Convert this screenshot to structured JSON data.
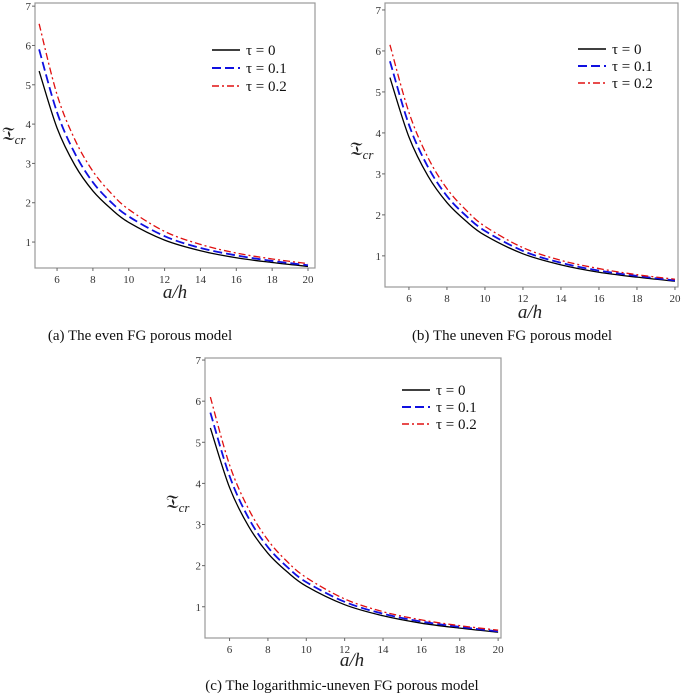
{
  "chart_data": [
    {
      "type": "line",
      "caption": "(a)  The even FG porous model",
      "xlabel": "a/h",
      "ylabel": {
        "symbol": "𝔗",
        "sub": "cr"
      },
      "xlim": [
        4.77,
        20.39
      ],
      "ylim": [
        0.34,
        7.08
      ],
      "xticks": [
        6,
        8,
        10,
        12,
        14,
        16,
        18,
        20
      ],
      "yticks": [
        1,
        2,
        3,
        4,
        5,
        6,
        7
      ],
      "grid": false,
      "legend_position": "top-right",
      "x": [
        5,
        6,
        7,
        8,
        9,
        10,
        12,
        14,
        16,
        18,
        20
      ],
      "series": [
        {
          "name": "τ = 0",
          "color": "#000000",
          "style": "solid",
          "values": [
            5.35,
            3.9,
            2.95,
            2.3,
            1.85,
            1.5,
            1.05,
            0.78,
            0.6,
            0.48,
            0.38
          ]
        },
        {
          "name": "τ = 0.1",
          "color": "#1010e0",
          "style": "dashed",
          "values": [
            5.9,
            4.3,
            3.25,
            2.52,
            2.02,
            1.65,
            1.15,
            0.85,
            0.66,
            0.52,
            0.41
          ]
        },
        {
          "name": "τ = 0.2",
          "color": "#e01010",
          "style": "dashdot",
          "values": [
            6.55,
            4.75,
            3.6,
            2.8,
            2.25,
            1.83,
            1.27,
            0.94,
            0.72,
            0.57,
            0.45
          ]
        }
      ]
    },
    {
      "type": "line",
      "caption": "(b)  The uneven FG porous model",
      "xlabel": "a/h",
      "ylabel": {
        "symbol": "𝔗",
        "sub": "cr"
      },
      "xlim": [
        4.74,
        20.16
      ],
      "ylim": [
        0.24,
        7.17
      ],
      "xticks": [
        6,
        8,
        10,
        12,
        14,
        16,
        18,
        20
      ],
      "yticks": [
        1,
        2,
        3,
        4,
        5,
        6,
        7
      ],
      "grid": false,
      "legend_position": "top-right",
      "x": [
        5,
        6,
        7,
        8,
        9,
        10,
        12,
        14,
        16,
        18,
        20
      ],
      "series": [
        {
          "name": "τ = 0",
          "color": "#000000",
          "style": "solid",
          "values": [
            5.35,
            3.9,
            2.95,
            2.3,
            1.85,
            1.5,
            1.05,
            0.78,
            0.6,
            0.48,
            0.38
          ]
        },
        {
          "name": "τ = 0.1",
          "color": "#1010e0",
          "style": "dashed",
          "values": [
            5.75,
            4.2,
            3.17,
            2.46,
            1.98,
            1.61,
            1.12,
            0.83,
            0.64,
            0.51,
            0.4
          ]
        },
        {
          "name": "τ = 0.2",
          "color": "#e01010",
          "style": "dashdot",
          "values": [
            6.15,
            4.5,
            3.4,
            2.64,
            2.12,
            1.72,
            1.2,
            0.89,
            0.69,
            0.54,
            0.43
          ]
        }
      ]
    },
    {
      "type": "line",
      "caption": "(c)  The logarithmic-uneven FG porous model",
      "xlabel": "a/h",
      "ylabel": {
        "symbol": "𝔗",
        "sub": "cr"
      },
      "xlim": [
        4.72,
        20.15
      ],
      "ylim": [
        0.24,
        7.05
      ],
      "xticks": [
        6,
        8,
        10,
        12,
        14,
        16,
        18,
        20
      ],
      "yticks": [
        1,
        2,
        3,
        4,
        5,
        6,
        7
      ],
      "grid": false,
      "legend_position": "top-right",
      "x": [
        5,
        6,
        7,
        8,
        9,
        10,
        12,
        14,
        16,
        18,
        20
      ],
      "series": [
        {
          "name": "τ = 0",
          "color": "#000000",
          "style": "solid",
          "values": [
            5.35,
            3.9,
            2.95,
            2.3,
            1.85,
            1.5,
            1.05,
            0.78,
            0.6,
            0.48,
            0.38
          ]
        },
        {
          "name": "τ = 0.1",
          "color": "#1010e0",
          "style": "dashed",
          "values": [
            5.72,
            4.18,
            3.15,
            2.45,
            1.97,
            1.6,
            1.12,
            0.83,
            0.64,
            0.51,
            0.4
          ]
        },
        {
          "name": "τ = 0.2",
          "color": "#e01010",
          "style": "dashdot",
          "values": [
            6.1,
            4.45,
            3.37,
            2.62,
            2.1,
            1.71,
            1.19,
            0.88,
            0.68,
            0.54,
            0.43
          ]
        }
      ]
    }
  ]
}
